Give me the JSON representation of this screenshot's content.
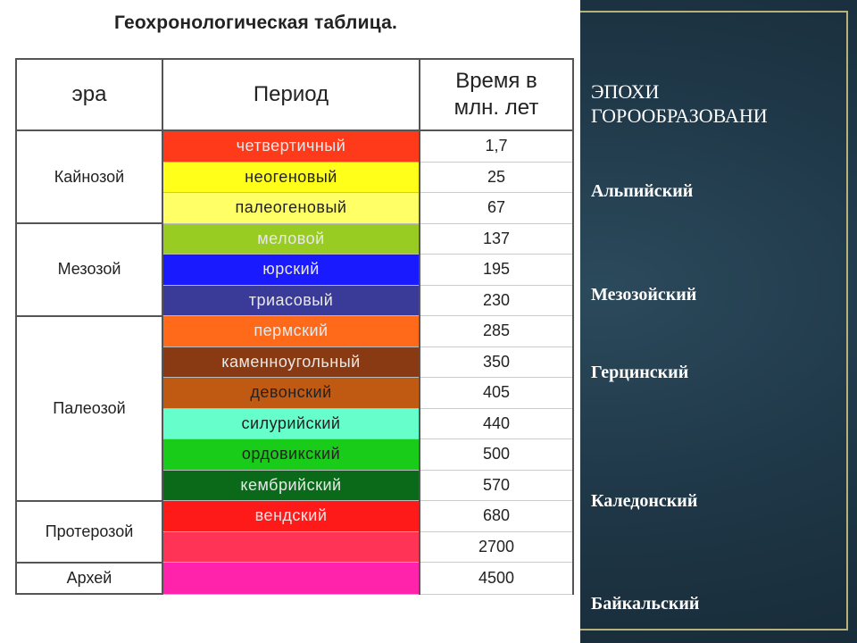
{
  "table": {
    "title": "Геохронологическая таблица.",
    "headers": {
      "era": "эра",
      "period": "Период",
      "time_line1": "Время в",
      "time_line2": "млн. лет"
    },
    "rows": [
      {
        "era": "Кайнозой",
        "period": "четвертичный",
        "time": "1,7",
        "color": "#ff3a1a"
      },
      {
        "era": "",
        "period": "неогеновый",
        "time": "25",
        "color": "#ffff1a"
      },
      {
        "era": "",
        "period": "палеогеновый",
        "time": "67",
        "color": "#ffff66"
      },
      {
        "era": "Мезозой",
        "period": "меловой",
        "time": "137",
        "color": "#99cc22"
      },
      {
        "era": "",
        "period": "юрский",
        "time": "195",
        "color": "#1a1aff"
      },
      {
        "era": "",
        "period": "триасовый",
        "time": "230",
        "color": "#3a3a99"
      },
      {
        "era": "Палеозой",
        "period": "пермский",
        "time": "285",
        "color": "#ff6a1a"
      },
      {
        "era": "",
        "period": "каменноугольный",
        "time": "350",
        "color": "#8a3a12"
      },
      {
        "era": "",
        "period": "девонский",
        "time": "405",
        "color": "#c05a12"
      },
      {
        "era": "",
        "period": "силурийский",
        "time": "440",
        "color": "#66ffcc"
      },
      {
        "era": "",
        "period": "ордовикский",
        "time": "500",
        "color": "#1acc1a"
      },
      {
        "era": "",
        "period": "кембрийский",
        "time": "570",
        "color": "#0a6a1a"
      },
      {
        "era": "Протерозой",
        "period": "вендский",
        "time": "680",
        "color": "#ff1a1a"
      },
      {
        "era": "",
        "period": "",
        "time": "2700",
        "color": "#ff3355"
      },
      {
        "era": "Архей",
        "period": "",
        "time": "4500",
        "color": "#ff22aa"
      }
    ]
  },
  "epochs": {
    "heading_line1": "ЭПОХИ",
    "heading_line2": "ГОРООБРАЗОВАНИ",
    "items": [
      "Альпийский",
      "Мезозойский",
      "Герцинский",
      "Каледонский",
      "Байкальский"
    ]
  }
}
